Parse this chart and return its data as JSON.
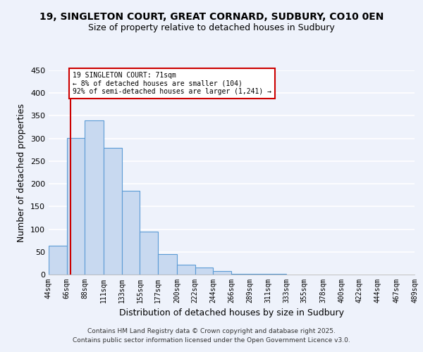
{
  "title": "19, SINGLETON COURT, GREAT CORNARD, SUDBURY, CO10 0EN",
  "subtitle": "Size of property relative to detached houses in Sudbury",
  "xlabel": "Distribution of detached houses by size in Sudbury",
  "ylabel": "Number of detached properties",
  "bar_left_edges": [
    44,
    66,
    88,
    111,
    133,
    155,
    177,
    200,
    222,
    244,
    266,
    289,
    311,
    333,
    355,
    378,
    400,
    422,
    444,
    467
  ],
  "bar_widths": [
    22,
    22,
    23,
    22,
    22,
    22,
    23,
    22,
    22,
    22,
    23,
    22,
    22,
    22,
    23,
    22,
    22,
    22,
    23,
    22
  ],
  "bar_heights": [
    63,
    301,
    340,
    280,
    185,
    94,
    45,
    22,
    15,
    7,
    1,
    2,
    1,
    0,
    0,
    0,
    0,
    0,
    0,
    0
  ],
  "bar_color": "#c8d9f0",
  "bar_edge_color": "#5b9bd5",
  "x_tick_labels": [
    "44sqm",
    "66sqm",
    "88sqm",
    "111sqm",
    "133sqm",
    "155sqm",
    "177sqm",
    "200sqm",
    "222sqm",
    "244sqm",
    "266sqm",
    "289sqm",
    "311sqm",
    "333sqm",
    "355sqm",
    "378sqm",
    "400sqm",
    "422sqm",
    "444sqm",
    "467sqm",
    "489sqm"
  ],
  "x_tick_positions": [
    44,
    66,
    88,
    111,
    133,
    155,
    177,
    200,
    222,
    244,
    266,
    289,
    311,
    333,
    355,
    378,
    400,
    422,
    444,
    467,
    489
  ],
  "ylim": [
    0,
    450
  ],
  "yticks": [
    0,
    50,
    100,
    150,
    200,
    250,
    300,
    350,
    400,
    450
  ],
  "property_line_x": 71,
  "property_line_color": "#cc0000",
  "annotation_text": "19 SINGLETON COURT: 71sqm\n← 8% of detached houses are smaller (104)\n92% of semi-detached houses are larger (1,241) →",
  "annotation_box_color": "#ffffff",
  "annotation_box_edge_color": "#cc0000",
  "bg_color": "#eef2fb",
  "grid_color": "#ffffff",
  "footer_line1": "Contains HM Land Registry data © Crown copyright and database right 2025.",
  "footer_line2": "Contains public sector information licensed under the Open Government Licence v3.0."
}
